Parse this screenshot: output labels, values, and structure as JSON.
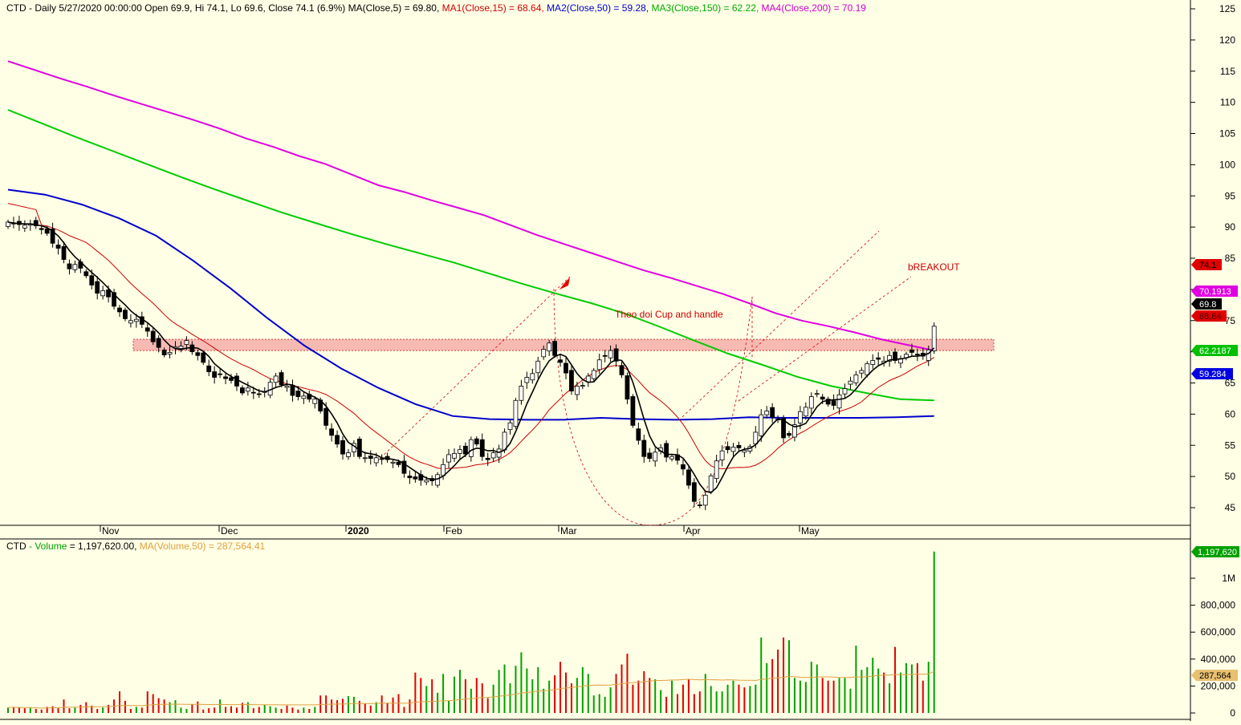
{
  "price_header": {
    "symbol": "CTD",
    "info": " - Daily 5/27/2020 00:00:00 Open 69.9, Hi 74.1, Lo 69.6, Close 74.1 (6.9%) ",
    "ma": "MA(Close,5) = 69.80, ",
    "ma1": "MA1(Close,15) = 68.64, ",
    "ma2": "MA2(Close,50) = 59.28, ",
    "ma3": "MA3(Close,150) = 62.22, ",
    "ma4": "MA4(Close,200) = 70.19"
  },
  "volume_header": {
    "symbol": "CTD",
    "label": " - Volume",
    "value": " = 1,197,620.00, ",
    "ma": "MA(Volume,50) = 287,564.41"
  },
  "annotations": {
    "breakout": "bREAKOUT",
    "pattern": "Theo doi Cup and handle"
  },
  "price_tags": {
    "close": "74.1",
    "ma4": "70.1913",
    "ma5": "69.8",
    "ma1": "68.64",
    "ma3": "62.2187",
    "ma2": "59.284"
  },
  "volume_tags": {
    "last": "1,197,620",
    "ma": "287,564"
  },
  "colors": {
    "background": "#ffffe6",
    "ma5": "#000000",
    "ma15": "#cc0000",
    "ma50": "#0000cc",
    "ma150": "#00cc00",
    "ma200": "#e000e0",
    "volume_up": "#00a000",
    "volume_down": "#e00000",
    "zone": "#f4a3a0"
  },
  "chart_data": [
    {
      "type": "candlestick",
      "symbol": "CTD",
      "timeframe": "Daily",
      "last_bar": {
        "date": "5/27/2020",
        "open": 69.9,
        "high": 74.1,
        "low": 69.6,
        "close": 74.1,
        "change_pct": 6.9
      },
      "y_axis": {
        "ticks": [
          45,
          50,
          55,
          60,
          65,
          70,
          75,
          80,
          85,
          90,
          95,
          100,
          105,
          110,
          115,
          120,
          125
        ],
        "range": [
          43.5,
          126
        ]
      },
      "x_axis": {
        "labels": [
          "Nov",
          "Dec",
          "2020",
          "Feb",
          "Mar",
          "Apr",
          "May"
        ]
      },
      "close_path": [
        90.8,
        90.5,
        90.4,
        90.3,
        90.5,
        90.2,
        89.6,
        89.0,
        87.4,
        86.6,
        84.8,
        83.3,
        84.0,
        83.4,
        82.2,
        80.7,
        79.4,
        79.8,
        78.8,
        77.3,
        76.4,
        75.3,
        75.0,
        75.2,
        74.4,
        73.3,
        71.6,
        70.7,
        69.5,
        69.9,
        70.8,
        70.9,
        71.8,
        70.0,
        69.4,
        68.3,
        66.8,
        65.9,
        66.4,
        65.7,
        65.4,
        64.5,
        63.4,
        64.2,
        63.4,
        63.2,
        63.6,
        65.1,
        66.1,
        64.7,
        64.5,
        63.0,
        62.8,
        62.9,
        62.4,
        62.4,
        60.5,
        58.2,
        56.6,
        55.2,
        53.6,
        53.8,
        55.3,
        53.2,
        53.0,
        52.9,
        53.0,
        52.8,
        52.7,
        52.3,
        51.9,
        50.5,
        49.8,
        49.6,
        49.4,
        49.4,
        49.3,
        50.3,
        51.9,
        53.5,
        53.7,
        54.3,
        53.6,
        55.9,
        55.2,
        53.2,
        52.7,
        53.8,
        54.4,
        57.1,
        58.6,
        62.2,
        64.5,
        65.9,
        66.5,
        68.5,
        70.4,
        71.4,
        69.4,
        68.3,
        66.6,
        63.7,
        64.5,
        64.6,
        66.1,
        67.0,
        68.7,
        69.3,
        70.2,
        68.5,
        66.3,
        62.4,
        58.2,
        55.8,
        53.2,
        52.9,
        53.9,
        54.6,
        53.1,
        53.2,
        52.6,
        51.2,
        48.6,
        46.0,
        45.4,
        47.0,
        50.1,
        52.5,
        54.1,
        54.3,
        54.7,
        54.6,
        54.2,
        54.8,
        57.1,
        59.9,
        60.5,
        59.5,
        59.2,
        56.2,
        56.6,
        58.3,
        60.4,
        61.1,
        62.8,
        63.3,
        62.4,
        61.6,
        61.4,
        63.1,
        64.1,
        65.3,
        66.3,
        67.0,
        68.1,
        68.6,
        68.8,
        68.5,
        69.4,
        68.6,
        68.9,
        69.6,
        69.9,
        69.5,
        69.3,
        70.3,
        74.1
      ],
      "moving_averages": [
        {
          "name": "MA(Close,5)",
          "last": 69.8
        },
        {
          "name": "MA1(Close,15)",
          "last": 68.64
        },
        {
          "name": "MA2(Close,50)",
          "last": 59.28
        },
        {
          "name": "MA3(Close,150)",
          "last": 62.22
        },
        {
          "name": "MA4(Close,200)",
          "last": 70.19
        }
      ],
      "ma50_path": [
        96,
        95.2,
        93.6,
        91.4,
        88.6,
        84.6,
        80.2,
        75.4,
        71,
        67.3,
        64.2,
        61.6,
        59.7,
        59.2,
        59.1,
        59.1,
        59.4,
        59.2,
        59.1,
        59.2,
        59.5,
        59.4,
        59.4,
        59.4,
        59.5,
        59.7
      ],
      "ma150_path": [
        108.8,
        106.6,
        104.4,
        102.3,
        100.2,
        98.1,
        96.1,
        94.2,
        92.3,
        90.6,
        88.9,
        87.3,
        85.8,
        84.3,
        82.6,
        80.9,
        79.3,
        77.8,
        76.1,
        74.0,
        71.8,
        69.7,
        67.9,
        66.0,
        64.5,
        63.4,
        62.4,
        62.2
      ],
      "ma200_path": [
        116.6,
        115.2,
        113.8,
        112.5,
        111.1,
        109.8,
        108.5,
        107.2,
        105.8,
        104.2,
        102.9,
        101.4,
        100.1,
        98.4,
        96.7,
        95.6,
        94.3,
        93.1,
        91.9,
        90.3,
        88.7,
        87.3,
        85.9,
        84.5,
        83.1,
        81.9,
        80.6,
        79.3,
        77.8,
        76.2,
        75.0,
        74.1,
        73.1,
        72.0,
        71.1,
        70.2
      ],
      "resistance_zone": [
        70.2,
        72.0
      ],
      "annotations": [
        "bREAKOUT",
        "Theo doi Cup and handle"
      ]
    },
    {
      "type": "bar",
      "title": "CTD - Volume",
      "last_volume": 1197620,
      "ma_volume_50": 287564.41,
      "y_axis": {
        "ticks": [
          "0",
          "200,000",
          "400,000",
          "600,000",
          "800,000",
          "1M"
        ],
        "range": [
          0,
          1200000
        ]
      },
      "volumes_k": [
        40,
        45,
        40,
        35,
        40,
        30,
        25,
        45,
        50,
        35,
        100,
        35,
        40,
        60,
        80,
        55,
        30,
        40,
        60,
        100,
        160,
        90,
        30,
        45,
        40,
        160,
        140,
        110,
        100,
        80,
        95,
        40,
        30,
        65,
        85,
        25,
        35,
        40,
        100,
        45,
        50,
        40,
        75,
        80,
        35,
        45,
        60,
        50,
        40,
        30,
        55,
        40,
        25,
        40,
        30,
        45,
        130,
        130,
        100,
        95,
        105,
        125,
        120,
        90,
        70,
        55,
        80,
        130,
        75,
        115,
        140,
        45,
        100,
        300,
        260,
        200,
        250,
        150,
        290,
        90,
        270,
        320,
        250,
        180,
        260,
        220,
        110,
        210,
        320,
        360,
        220,
        350,
        450,
        330,
        250,
        340,
        180,
        240,
        280,
        380,
        300,
        220,
        260,
        340,
        290,
        130,
        140,
        120,
        190,
        290,
        360,
        440,
        210,
        240,
        310,
        260,
        250,
        170,
        120,
        240,
        140,
        210,
        250,
        140,
        160,
        290,
        200,
        160,
        160,
        210,
        240,
        210,
        190,
        200,
        210,
        560,
        370,
        400,
        470,
        560,
        540,
        260,
        240,
        230,
        380,
        360,
        260,
        240,
        240,
        260,
        260,
        180,
        500,
        320,
        340,
        410,
        330,
        300,
        220,
        490,
        300,
        370,
        360,
        370,
        240,
        380,
        1197.62
      ]
    }
  ]
}
